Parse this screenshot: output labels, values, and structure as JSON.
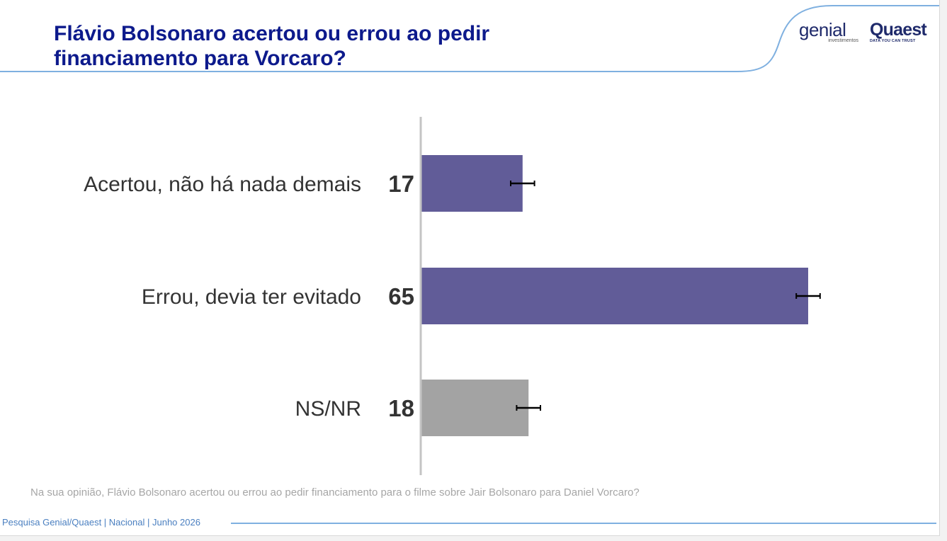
{
  "slide": {
    "title": "Flávio Bolsonaro acertou ou errou ao pedir financiamento para Vorcaro?",
    "question": "Na sua opinião, Flávio Bolsonaro acertou ou errou ao pedir financiamento para o filme sobre Jair Bolsonaro para Daniel Vorcaro?",
    "footer": "Pesquisa Genial/Quaest | Nacional | Junho 2026",
    "accent_color": "#0d1a8c",
    "line_color": "#7fb0e0"
  },
  "logos": {
    "genial_main": "genial",
    "genial_sub": "investimentos",
    "quaest_main": "Quaest",
    "quaest_sub": "DATA YOU CAN TRUST"
  },
  "chart_data": {
    "type": "bar",
    "orientation": "horizontal",
    "categories": [
      "Acertou, não há nada demais",
      "Errou, devia ter evitado",
      "NS/NR"
    ],
    "values": [
      17,
      65,
      18
    ],
    "error_margin": 2,
    "xlim": [
      0,
      100
    ],
    "colors": [
      "#615c98",
      "#615c98",
      "#a3a3a3"
    ],
    "title": "",
    "xlabel": "",
    "ylabel": "",
    "grid": false,
    "legend": "none"
  }
}
